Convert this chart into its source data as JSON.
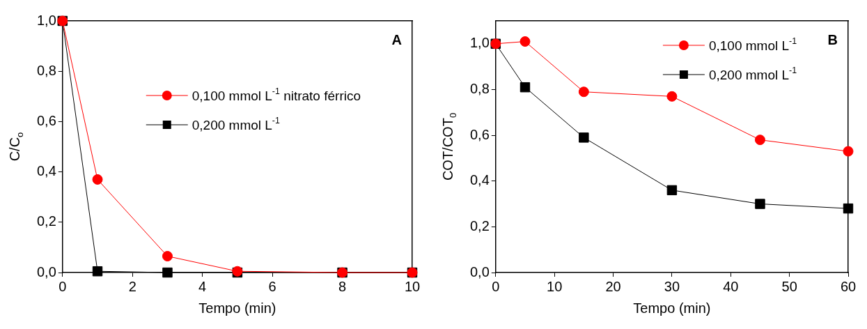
{
  "chart_data": [
    {
      "type": "line",
      "xlabel": "Tempo (min)",
      "ylabel": "C/C$_{o}$",
      "annotations": [
        "A"
      ],
      "xlim": [
        0,
        10
      ],
      "xticks": [
        0,
        2,
        4,
        6,
        8,
        10
      ],
      "ylim": [
        0,
        1.0
      ],
      "yticks": [
        {
          "value": 0,
          "label": "0,0"
        },
        {
          "value": 0.2,
          "label": "0,2"
        },
        {
          "value": 0.4,
          "label": "0,4"
        },
        {
          "value": 0.6,
          "label": "0,6"
        },
        {
          "value": 0.8,
          "label": "0,8"
        },
        {
          "value": 1.0,
          "label": "1,0"
        }
      ],
      "grid": false,
      "legend": "right",
      "line_style": "solid",
      "series": [
        {
          "name": "0,100 mmol L$^{-1}$ nitrato férrico",
          "color": "#ff0000",
          "marker": "circle",
          "x": [
            0,
            1,
            3,
            5,
            8,
            10
          ],
          "values": [
            1.0,
            0.37,
            0.065,
            0.005,
            0.0,
            0.0
          ]
        },
        {
          "name": "0,200 mmol L$^{-1}$",
          "color": "#000000",
          "marker": "square",
          "x": [
            0,
            1,
            3,
            5,
            8,
            10
          ],
          "values": [
            1.0,
            0.005,
            0.0,
            0.0,
            0.0,
            0.0
          ]
        }
      ]
    },
    {
      "type": "line",
      "xlabel": "Tempo (min)",
      "ylabel": "COT/COT$_{0}$",
      "annotations": [
        "B"
      ],
      "xlim": [
        0,
        60
      ],
      "xticks": [
        0,
        10,
        20,
        30,
        40,
        50,
        60
      ],
      "ylim": [
        0,
        1.1
      ],
      "yticks": [
        {
          "value": 0,
          "label": "0,0"
        },
        {
          "value": 0.2,
          "label": "0,2"
        },
        {
          "value": 0.4,
          "label": "0,4"
        },
        {
          "value": 0.6,
          "label": "0,6"
        },
        {
          "value": 0.8,
          "label": "0,8"
        },
        {
          "value": 1.0,
          "label": "1,0"
        }
      ],
      "grid": false,
      "legend": "top right",
      "line_style": "solid",
      "series": [
        {
          "name": "0,100 mmol L$^{-1}$",
          "color": "#ff0000",
          "marker": "circle",
          "x": [
            0,
            5,
            15,
            30,
            45,
            60
          ],
          "values": [
            1.0,
            1.01,
            0.79,
            0.77,
            0.58,
            0.53
          ]
        },
        {
          "name": "0,200 mmol L$^{-1}$",
          "color": "#000000",
          "marker": "square",
          "x": [
            0,
            5,
            15,
            30,
            45,
            60
          ],
          "values": [
            1.0,
            0.81,
            0.59,
            0.36,
            0.3,
            0.28
          ]
        }
      ]
    }
  ]
}
